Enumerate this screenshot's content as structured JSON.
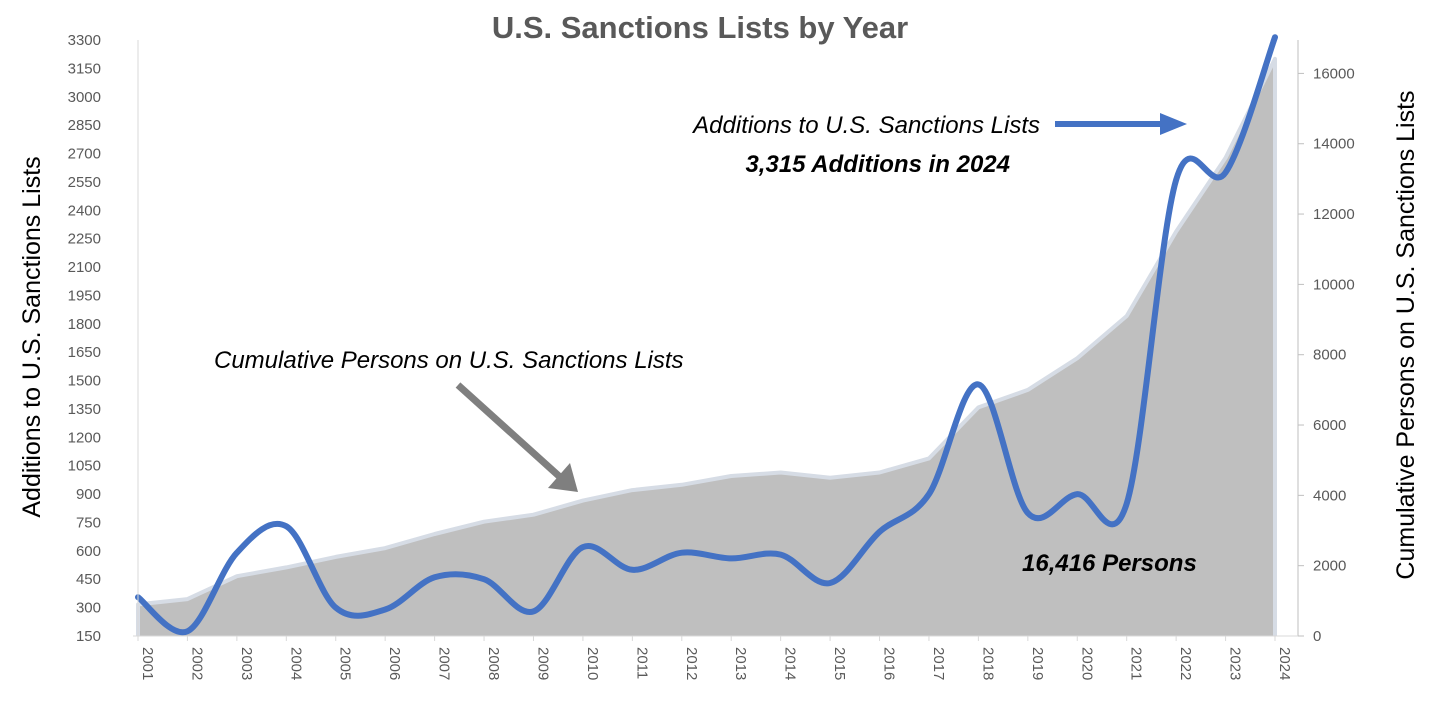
{
  "chart_data": {
    "type": "line+area",
    "title": "U.S. Sanctions Lists by Year",
    "categories": [
      "2001",
      "2002",
      "2003",
      "2004",
      "2005",
      "2006",
      "2007",
      "2008",
      "2009",
      "2010",
      "2011",
      "2012",
      "2013",
      "2014",
      "2015",
      "2016",
      "2017",
      "2018",
      "2019",
      "2020",
      "2021",
      "2022",
      "2023",
      "2024"
    ],
    "ylabel_left": "Additions to U.S. Sanctions Lists",
    "ylabel_right": "Cumulative Persons on U.S. Sanctions Lists",
    "y_left_ticks": [
      "150",
      "300",
      "450",
      "600",
      "750",
      "900",
      "1050",
      "1200",
      "1350",
      "1500",
      "1650",
      "1800",
      "1950",
      "2100",
      "2250",
      "2400",
      "2550",
      "2700",
      "2850",
      "3000",
      "3150",
      "3300"
    ],
    "y_right_ticks": [
      "0",
      "2000",
      "4000",
      "6000",
      "8000",
      "10000",
      "12000",
      "14000",
      "16000"
    ],
    "ylim_left": [
      150,
      3300
    ],
    "ylim_right": [
      0,
      16950
    ],
    "series": [
      {
        "name": "Additions to U.S. Sanctions Lists",
        "axis": "left",
        "style": "smooth-line",
        "color": "#4472C4",
        "values": [
          355,
          175,
          590,
          730,
          300,
          290,
          460,
          450,
          280,
          620,
          500,
          590,
          560,
          580,
          430,
          700,
          900,
          1480,
          800,
          900,
          850,
          2560,
          2600,
          3315
        ]
      },
      {
        "name": "Cumulative Persons on U.S. Sanctions Lists",
        "axis": "right",
        "style": "area",
        "color": "#BFBFBF",
        "values": [
          900,
          1050,
          1700,
          1950,
          2250,
          2500,
          2900,
          3250,
          3450,
          3850,
          4150,
          4300,
          4550,
          4650,
          4500,
          4650,
          5050,
          6500,
          7000,
          7900,
          9100,
          11500,
          13600,
          16416
        ]
      }
    ],
    "annotations": {
      "additions_label": "Additions to U.S. Sanctions Lists",
      "additions_value": "3,315 Additions in 2024",
      "cumulative_label": "Cumulative Persons on U.S. Sanctions Lists",
      "cumulative_value": "16,416 Persons"
    },
    "colors": {
      "line": "#4472C4",
      "area": "#BFBFBF",
      "area_edge": "#D6DCE5",
      "pointer_arrow": "#7F7F7F",
      "title": "#595959",
      "tick": "#595959"
    }
  }
}
